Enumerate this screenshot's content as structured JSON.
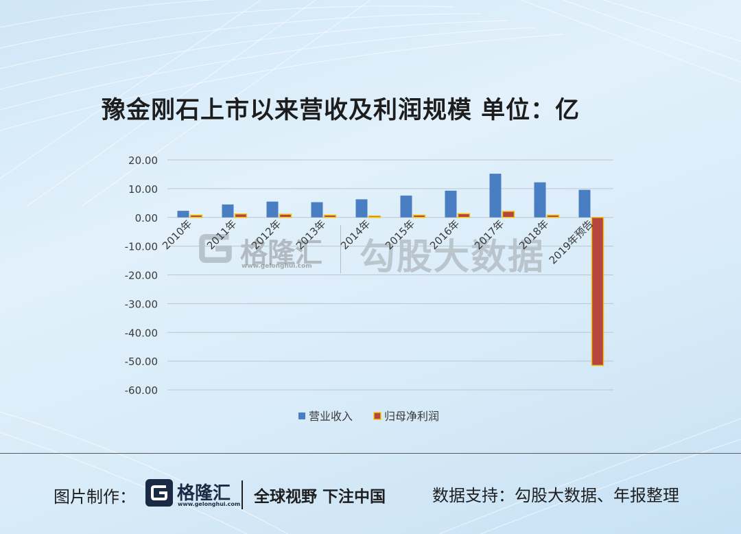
{
  "chart_data": {
    "type": "bar",
    "title": "豫金刚石上市以来营收及利润规模 单位：亿",
    "categories": [
      "2010年",
      "2011年",
      "2012年",
      "2013年",
      "2014年",
      "2015年",
      "2016年",
      "2017年",
      "2018年",
      "2019年预告"
    ],
    "series": [
      {
        "name": "营业收入",
        "values": [
          2.3,
          4.5,
          5.5,
          5.3,
          6.3,
          7.6,
          9.3,
          15.2,
          12.2,
          9.6
        ],
        "color": "#4a7ec3"
      },
      {
        "name": "归母净利润",
        "values": [
          0.8,
          1.2,
          1.1,
          0.8,
          0.5,
          0.8,
          1.3,
          2.1,
          0.8,
          -51.5
        ],
        "color": "#b5453e",
        "outline": "#f2c40f"
      }
    ],
    "ylim": [
      -60,
      20
    ],
    "yticks": [
      "20.00",
      "10.00",
      "0.00",
      "-10.00",
      "-20.00",
      "-30.00",
      "-40.00",
      "-50.00",
      "-60.00"
    ],
    "grid": true,
    "legend_position": "bottom"
  },
  "footer": {
    "credit_label": "图片制作：",
    "logo_name": "格隆汇",
    "logo_url": "www.gelonghui.com",
    "slogan": "全球视野 下注中国",
    "source": "数据支持：勾股大数据、年报整理"
  },
  "watermark": {
    "logo_name": "格隆汇",
    "logo_url": "www.gelonghui.com",
    "text": "勾股大数据"
  }
}
